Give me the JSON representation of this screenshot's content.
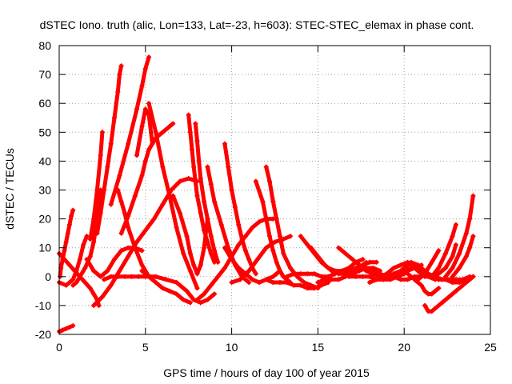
{
  "chart_data": {
    "type": "scatter",
    "title": "dSTEC Iono. truth (alic, Lon=133, Lat=-23, h=603): STEC-STEC_elemax in phase cont.",
    "xlabel": "GPS time / hours of day 100 of year 2015",
    "ylabel": "dSTEC  / TECUs",
    "xlim": [
      0,
      25
    ],
    "ylim": [
      -20,
      80
    ],
    "xticks": [
      0,
      5,
      10,
      15,
      20,
      25
    ],
    "yticks": [
      -20,
      -10,
      0,
      10,
      20,
      30,
      40,
      50,
      60,
      70,
      80
    ],
    "grid": true,
    "marker": "plus",
    "series_color": "#ff0000",
    "series": [
      {
        "x": [
          0.0,
          0.1,
          0.2,
          0.4,
          0.6,
          0.8
        ],
        "y": [
          -19,
          -18.8,
          -18.5,
          -18,
          -17.5,
          -17
        ]
      },
      {
        "x": [
          0.05,
          0.1,
          0.2,
          0.3,
          0.4,
          0.5,
          0.6,
          0.7,
          0.8
        ],
        "y": [
          0,
          3,
          6,
          9,
          12,
          15,
          18,
          21,
          23
        ]
      },
      {
        "x": [
          0.8,
          1.0,
          1.2,
          1.5,
          1.8,
          2.0,
          2.2,
          2.4
        ],
        "y": [
          -3,
          -2,
          0,
          3,
          7,
          12,
          20,
          30
        ]
      },
      {
        "x": [
          1.8,
          2.0,
          2.2,
          2.4,
          2.5
        ],
        "y": [
          13,
          20,
          30,
          42,
          50
        ]
      },
      {
        "x": [
          2.2,
          2.4,
          2.6,
          2.8,
          3.0,
          3.2,
          3.4,
          3.5,
          3.6
        ],
        "y": [
          15,
          22,
          30,
          38,
          46,
          55,
          64,
          70,
          73
        ]
      },
      {
        "x": [
          3.0,
          3.5,
          4.0,
          4.5,
          4.8,
          5.0,
          5.2
        ],
        "y": [
          25,
          35,
          46,
          58,
          66,
          72,
          76
        ]
      },
      {
        "x": [
          3.6,
          4.0,
          4.4,
          4.8,
          5.0,
          5.2,
          5.6,
          6.0,
          6.4,
          6.6
        ],
        "y": [
          15,
          21,
          28,
          35,
          40,
          44,
          48,
          50,
          52,
          53
        ]
      },
      {
        "x": [
          4.5,
          4.8,
          5.0,
          5.2,
          5.4
        ],
        "y": [
          42,
          52,
          58,
          56,
          46
        ]
      },
      {
        "x": [
          5.2,
          5.6,
          6.0,
          6.4,
          6.8,
          7.2,
          7.6,
          8.0
        ],
        "y": [
          60,
          50,
          38,
          28,
          17,
          8,
          2,
          -4
        ]
      },
      {
        "x": [
          0.0,
          0.4,
          0.8,
          1.0,
          1.2,
          1.4,
          1.6
        ],
        "y": [
          -2,
          -3,
          -1,
          2,
          6,
          11,
          14
        ]
      },
      {
        "x": [
          0.0,
          0.3,
          0.6,
          0.9,
          1.2,
          1.5,
          1.8,
          2.0,
          2.2,
          2.3
        ],
        "y": [
          8,
          6,
          4,
          2,
          0,
          -2,
          -4,
          -6,
          -8,
          -10
        ]
      },
      {
        "x": [
          2.0,
          2.5,
          3.0,
          3.5,
          4.0,
          4.5,
          5.0,
          5.5,
          6.0,
          6.5,
          7.0,
          7.5,
          8.0
        ],
        "y": [
          -10,
          -7,
          -3,
          2,
          7,
          12,
          16,
          20,
          25,
          30,
          33,
          34,
          33
        ]
      },
      {
        "x": [
          1.6,
          2.0,
          2.4,
          2.8,
          3.2,
          3.6,
          4.0,
          4.4,
          4.8
        ],
        "y": [
          6,
          2,
          0,
          2,
          6,
          9,
          10,
          10,
          9
        ]
      },
      {
        "x": [
          3.4,
          3.6,
          3.8,
          4.0,
          4.4,
          4.8,
          5.2
        ],
        "y": [
          30,
          26,
          22,
          17,
          10,
          4,
          0
        ]
      },
      {
        "x": [
          2.6,
          3.0,
          3.4,
          3.8,
          4.2,
          4.6,
          5.0,
          5.6,
          6.2,
          6.8,
          7.4,
          7.8,
          8.2,
          8.6,
          9.0
        ],
        "y": [
          -1,
          0,
          0,
          0,
          0,
          0,
          0,
          0,
          -1,
          -2,
          -5,
          -8,
          -9,
          -8,
          -6
        ]
      },
      {
        "x": [
          4.8,
          5.2,
          5.6,
          6.0,
          6.4,
          6.8,
          7.2,
          7.6
        ],
        "y": [
          2,
          0,
          -2,
          -4,
          -5,
          -6,
          -8,
          -9
        ]
      },
      {
        "x": [
          6.6,
          7.0,
          7.4,
          7.6,
          7.8,
          8.0,
          8.2,
          8.4,
          8.6
        ],
        "y": [
          28,
          22,
          14,
          8,
          4,
          1,
          4,
          10,
          20
        ]
      },
      {
        "x": [
          7.5,
          7.6,
          7.7,
          7.8,
          7.9,
          8.0,
          8.2,
          8.4,
          8.6,
          8.8,
          9.0
        ],
        "y": [
          56,
          50,
          44,
          38,
          33,
          28,
          22,
          16,
          12,
          8,
          5
        ]
      },
      {
        "x": [
          7.9,
          8.0,
          8.1,
          8.2,
          8.4,
          8.6,
          8.8,
          9.0,
          9.2
        ],
        "y": [
          53,
          47,
          40,
          34,
          26,
          20,
          14,
          9,
          5
        ]
      },
      {
        "x": [
          8.6,
          8.8,
          9.0,
          9.4,
          9.8,
          10.2,
          10.6,
          11.0
        ],
        "y": [
          38,
          32,
          26,
          18,
          10,
          4,
          0,
          -2
        ]
      },
      {
        "x": [
          8.0,
          8.4,
          8.8,
          9.2,
          9.6,
          10.0,
          10.4,
          10.8,
          11.2,
          11.6,
          12.0,
          12.4
        ],
        "y": [
          -8,
          -6,
          -3,
          0,
          3,
          7,
          11,
          14,
          17,
          19,
          20,
          20
        ]
      },
      {
        "x": [
          9.6,
          9.8,
          10.0,
          10.2,
          10.4,
          10.6,
          10.8,
          11.0,
          11.2,
          11.4
        ],
        "y": [
          46,
          38,
          30,
          24,
          18,
          13,
          9,
          6,
          3,
          1
        ]
      },
      {
        "x": [
          9.6,
          10.0,
          10.4,
          10.8,
          11.2,
          11.6,
          12.0,
          12.4,
          12.8
        ],
        "y": [
          10,
          6,
          3,
          1,
          -1,
          -2,
          -1,
          0,
          2
        ]
      },
      {
        "x": [
          10.0,
          10.5,
          11.0,
          11.5,
          12.0,
          12.5,
          13.0,
          13.4
        ],
        "y": [
          -2,
          -1,
          2,
          6,
          10,
          12,
          13,
          14
        ]
      },
      {
        "x": [
          11.4,
          11.8,
          12.0,
          12.2,
          12.4,
          12.6,
          12.8,
          13.0,
          13.2,
          13.4
        ],
        "y": [
          33,
          26,
          20,
          14,
          9,
          5,
          2,
          0,
          -1,
          -2
        ]
      },
      {
        "x": [
          12.0,
          12.2,
          12.4,
          12.6,
          12.8,
          13.0,
          13.4,
          13.8,
          14.2,
          14.6,
          15.0
        ],
        "y": [
          38,
          33,
          26,
          20,
          14,
          8,
          3,
          0,
          -2,
          -3,
          -4
        ]
      },
      {
        "x": [
          12.0,
          12.4,
          12.8,
          13.2,
          13.6,
          14.0,
          14.4,
          14.8,
          15.2,
          15.6
        ],
        "y": [
          -1,
          -2,
          -2,
          -2,
          -3,
          -3,
          -4,
          -4,
          -3,
          -2
        ]
      },
      {
        "x": [
          13.2,
          13.6,
          14.0,
          14.4,
          14.8,
          15.2,
          15.6,
          16.0,
          16.4,
          16.8,
          17.2,
          17.6
        ],
        "y": [
          0,
          1,
          1,
          1,
          1,
          0,
          0,
          1,
          2,
          3,
          5,
          6
        ]
      },
      {
        "x": [
          14.0,
          14.4,
          14.8,
          15.2,
          15.6,
          16.0,
          16.4,
          16.8,
          17.2,
          17.6,
          18.0,
          18.4
        ],
        "y": [
          14,
          11,
          8,
          5,
          3,
          2,
          2,
          2,
          3,
          4,
          5,
          5
        ]
      },
      {
        "x": [
          14.6,
          15.0,
          15.4,
          15.8,
          16.2,
          16.6,
          17.0,
          17.4,
          17.8
        ],
        "y": [
          10,
          7,
          4,
          2,
          1,
          1,
          2,
          3,
          5
        ]
      },
      {
        "x": [
          15.0,
          15.4,
          15.8,
          16.2,
          16.6,
          17.0,
          17.4,
          17.8,
          18.2,
          18.6
        ],
        "y": [
          -2,
          -1,
          -1,
          -1,
          0,
          1,
          2,
          3,
          3,
          2
        ]
      },
      {
        "x": [
          16.2,
          16.6,
          17.0,
          17.4,
          17.8,
          18.2,
          18.6,
          19.0,
          19.4,
          19.8,
          20.2
        ],
        "y": [
          10,
          8,
          6,
          4,
          2,
          1,
          0,
          0,
          1,
          2,
          3
        ]
      },
      {
        "x": [
          16.8,
          17.2,
          17.6,
          18.0,
          18.4,
          18.8,
          19.2,
          19.6,
          20.0,
          20.4,
          20.8
        ],
        "y": [
          0,
          0,
          0,
          0,
          -1,
          -1,
          -1,
          0,
          1,
          3,
          4
        ]
      },
      {
        "x": [
          17.4,
          17.8,
          18.2,
          18.6,
          19.0,
          19.4,
          19.8,
          20.2,
          20.6,
          21.0
        ],
        "y": [
          4,
          3,
          2,
          1,
          0,
          0,
          1,
          2,
          3,
          4
        ]
      },
      {
        "x": [
          18.0,
          18.4,
          18.8,
          19.2,
          19.6,
          20.0,
          20.4,
          20.8,
          21.2,
          21.6,
          22.0
        ],
        "y": [
          -2,
          -1,
          -1,
          0,
          1,
          3,
          5,
          4,
          2,
          0,
          -1
        ]
      },
      {
        "x": [
          18.6,
          19.0,
          19.4,
          19.8,
          20.2,
          20.6,
          21.0,
          21.4,
          21.8
        ],
        "y": [
          0,
          1,
          3,
          4,
          5,
          4,
          2,
          0,
          -1
        ]
      },
      {
        "x": [
          19.4,
          19.8,
          20.2,
          20.6,
          21.0,
          21.4,
          21.8,
          22.2,
          22.6
        ],
        "y": [
          0,
          -1,
          -1,
          0,
          0,
          1,
          0,
          -1,
          -1
        ]
      },
      {
        "x": [
          20.0,
          20.4,
          20.8,
          21.2,
          21.6,
          22.0
        ],
        "y": [
          2,
          0,
          -1,
          1,
          5,
          9
        ]
      },
      {
        "x": [
          20.4,
          20.8,
          21.2,
          21.6,
          22.0,
          22.4,
          22.8,
          23.0
        ],
        "y": [
          4,
          2,
          0,
          0,
          1,
          3,
          7,
          11
        ]
      },
      {
        "x": [
          20.6,
          21.0,
          21.2,
          21.4,
          21.6,
          21.8,
          22.0
        ],
        "y": [
          -1,
          -3,
          -5,
          -6,
          -6,
          -5,
          -4
        ]
      },
      {
        "x": [
          21.2,
          21.4,
          21.6,
          21.8,
          22.2,
          22.6,
          23.0,
          23.4,
          23.8,
          24.0
        ],
        "y": [
          -10,
          -12,
          -12,
          -11,
          -9,
          -7,
          -5,
          -3,
          -1,
          0
        ]
      },
      {
        "x": [
          22.0,
          22.4,
          22.8,
          23.2,
          23.6,
          24.0
        ],
        "y": [
          -1,
          -1,
          -2,
          -2,
          -1,
          0
        ]
      },
      {
        "x": [
          21.6,
          22.0,
          22.4,
          22.8,
          23.0
        ],
        "y": [
          0,
          3,
          8,
          14,
          18
        ]
      },
      {
        "x": [
          22.4,
          22.8,
          23.2,
          23.6,
          23.8,
          24.0
        ],
        "y": [
          0,
          3,
          8,
          15,
          20,
          28
        ]
      },
      {
        "x": [
          22.8,
          23.2,
          23.6,
          23.8,
          24.0
        ],
        "y": [
          0,
          3,
          7,
          10,
          14
        ]
      },
      {
        "x": [
          22.2,
          22.6,
          23.0,
          23.4,
          23.8
        ],
        "y": [
          -1,
          -1,
          -1,
          -1,
          0
        ]
      }
    ]
  }
}
